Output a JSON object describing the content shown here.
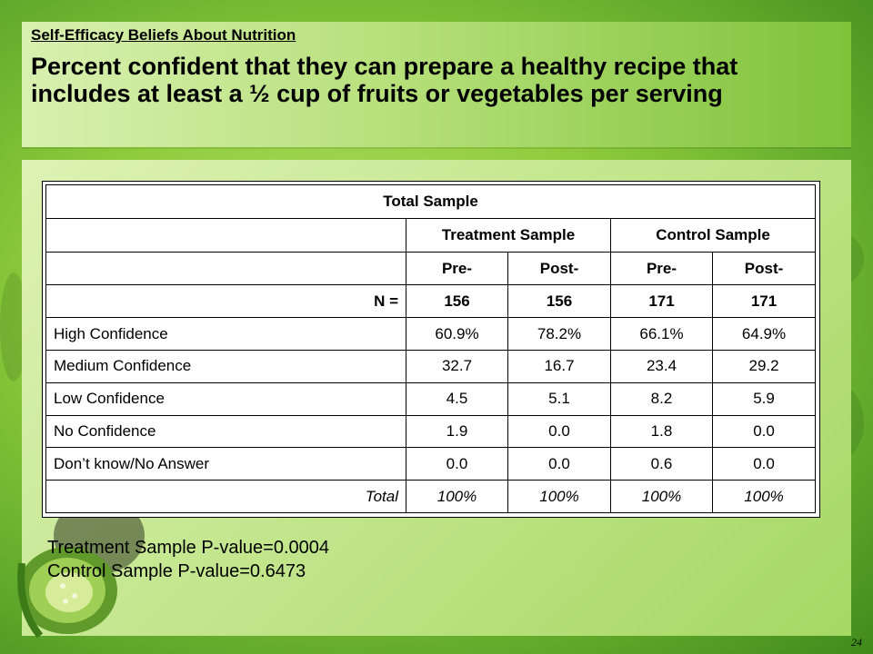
{
  "header": {
    "subtitle": "Self-Efficacy Beliefs About Nutrition",
    "title": "Percent confident that they can prepare a healthy recipe that includes at least a ½ cup of fruits or vegetables per serving"
  },
  "table": {
    "title": "Total Sample",
    "groups": [
      "Treatment Sample",
      "Control Sample"
    ],
    "phases": [
      "Pre-",
      "Post-",
      "Pre-",
      "Post-"
    ],
    "n_row": {
      "label": "N =",
      "values": [
        "156",
        "156",
        "171",
        "171"
      ]
    },
    "rows": [
      {
        "label": "High Confidence",
        "values": [
          "60.9%",
          "78.2%",
          "66.1%",
          "64.9%"
        ]
      },
      {
        "label": "Medium Confidence",
        "values": [
          "32.7",
          "16.7",
          "23.4",
          "29.2"
        ]
      },
      {
        "label": "Low Confidence",
        "values": [
          "4.5",
          "5.1",
          "8.2",
          "5.9"
        ]
      },
      {
        "label": "No Confidence",
        "values": [
          "1.9",
          "0.0",
          "1.8",
          "0.0"
        ]
      },
      {
        "label": "Don’t know/No Answer",
        "values": [
          "0.0",
          "0.0",
          "0.6",
          "0.0"
        ]
      }
    ],
    "total_row": {
      "label": "Total",
      "values": [
        "100%",
        "100%",
        "100%",
        "100%"
      ]
    }
  },
  "pvalues": {
    "treatment": "Treatment Sample P-value=0.0004",
    "control": "Control Sample P-value=0.6473"
  },
  "slide_number": "24",
  "decor_icon": "vegetable-image"
}
